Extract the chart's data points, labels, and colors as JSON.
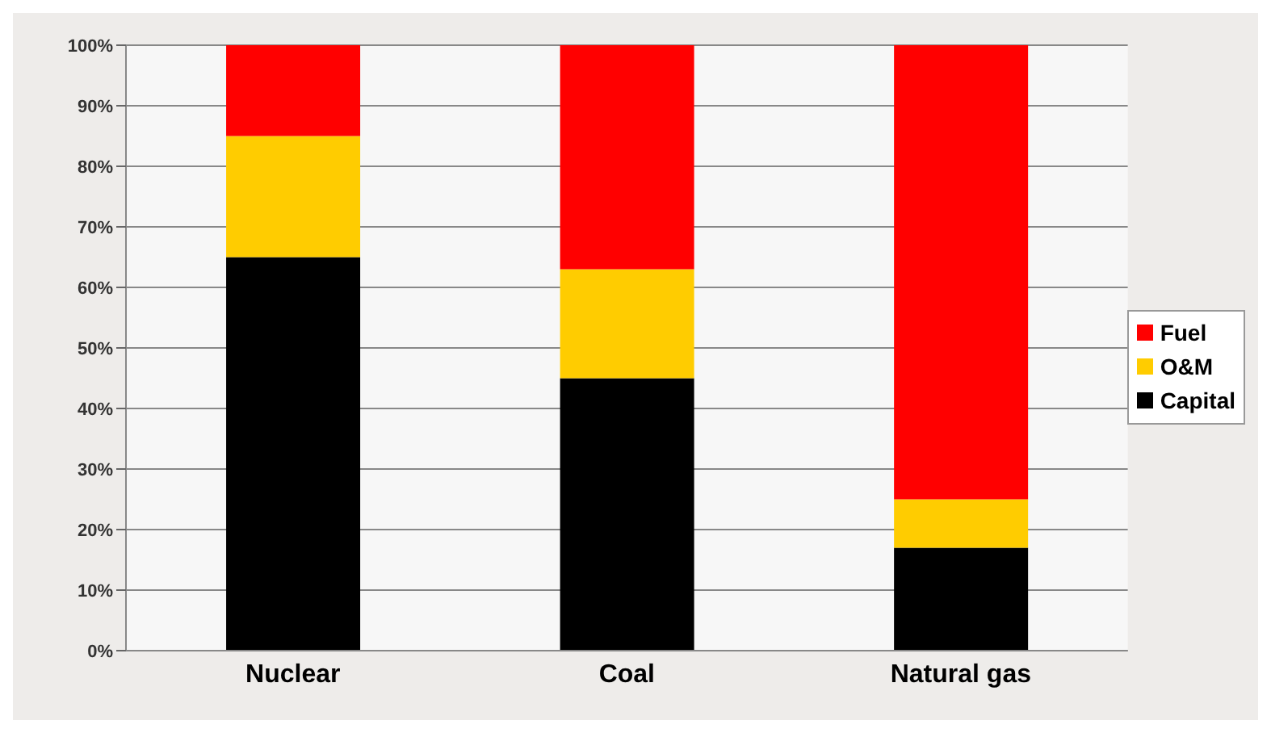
{
  "chart_data": {
    "type": "bar",
    "stacked": true,
    "categories": [
      "Nuclear",
      "Coal",
      "Natural gas"
    ],
    "series": [
      {
        "name": "Capital",
        "color": "#000000",
        "values": [
          65,
          45,
          17
        ]
      },
      {
        "name": "O&M",
        "color": "#ffcc00",
        "values": [
          20,
          18,
          8
        ]
      },
      {
        "name": "Fuel",
        "color": "#ff0000",
        "values": [
          15,
          37,
          75
        ]
      }
    ],
    "ylim": [
      0,
      100
    ],
    "yticks": [
      {
        "value": 0,
        "label": "0%"
      },
      {
        "value": 10,
        "label": "10%"
      },
      {
        "value": 20,
        "label": "20%"
      },
      {
        "value": 30,
        "label": "30%"
      },
      {
        "value": 40,
        "label": "40%"
      },
      {
        "value": 50,
        "label": "50%"
      },
      {
        "value": 60,
        "label": "60%"
      },
      {
        "value": 70,
        "label": "70%"
      },
      {
        "value": 80,
        "label": "80%"
      },
      {
        "value": 90,
        "label": "90%"
      },
      {
        "value": 100,
        "label": "100%"
      }
    ],
    "grid": "y",
    "legend": "right"
  }
}
